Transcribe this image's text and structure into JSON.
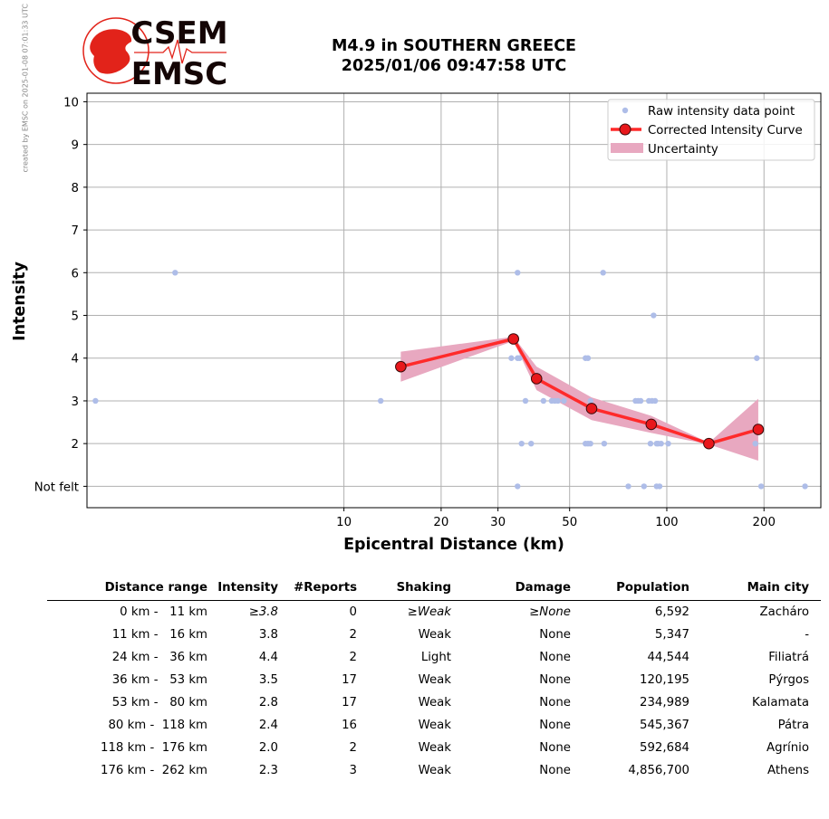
{
  "credit": "created by EMSC on 2025-01-08 07:01:33 UTC",
  "logo": {
    "text_top": "CSEM",
    "text_bottom": "EMSC",
    "brand_color": "#e2231a"
  },
  "chart_data": {
    "type": "scatter",
    "title_line1": "M4.9 in SOUTHERN GREECE",
    "title_line2": "2025/01/06 09:47:58 UTC",
    "xlabel": "Epicentral Distance (km)",
    "ylabel": "Intensity",
    "x_scale": "log",
    "xlim": [
      1.6,
      300
    ],
    "ylim": [
      0.5,
      10.2
    ],
    "x_ticks": [
      10,
      20,
      30,
      50,
      100,
      200
    ],
    "y_ticks": [
      1,
      2,
      3,
      4,
      5,
      6,
      7,
      8,
      9,
      10
    ],
    "y_tick_labels": [
      "Not felt",
      "2",
      "3",
      "4",
      "5",
      "6",
      "7",
      "8",
      "9",
      "10"
    ],
    "grid": true,
    "legend_position": "top-right",
    "colors": {
      "raw": "#aebde8",
      "curve": "#ff2a2a",
      "marker": "#e8181c",
      "uncertainty": "#e8a8c0"
    },
    "series": [
      {
        "name": "Raw intensity data point",
        "points": [
          [
            1.7,
            3
          ],
          [
            3,
            6
          ],
          [
            13,
            3
          ],
          [
            33,
            4
          ],
          [
            34.5,
            6
          ],
          [
            34.5,
            4
          ],
          [
            35,
            4
          ],
          [
            34.5,
            1
          ],
          [
            35.5,
            2
          ],
          [
            36.5,
            3
          ],
          [
            38,
            2
          ],
          [
            41.5,
            3
          ],
          [
            44,
            3
          ],
          [
            45,
            3
          ],
          [
            46,
            3
          ],
          [
            48,
            3
          ],
          [
            56,
            4
          ],
          [
            57,
            4
          ],
          [
            56,
            2
          ],
          [
            57,
            2
          ],
          [
            58,
            2
          ],
          [
            58,
            3
          ],
          [
            63.5,
            6
          ],
          [
            64,
            2
          ],
          [
            76,
            1
          ],
          [
            80,
            3
          ],
          [
            81.5,
            3
          ],
          [
            83,
            3
          ],
          [
            85,
            1
          ],
          [
            88,
            3
          ],
          [
            89,
            2
          ],
          [
            90,
            3
          ],
          [
            91,
            5
          ],
          [
            92,
            3
          ],
          [
            93,
            1
          ],
          [
            93,
            2
          ],
          [
            94,
            2
          ],
          [
            95,
            1
          ],
          [
            96,
            2
          ],
          [
            101,
            2
          ],
          [
            188,
            2
          ],
          [
            190,
            4
          ],
          [
            196,
            1
          ],
          [
            268,
            1
          ]
        ]
      },
      {
        "name": "Corrected Intensity Curve",
        "points": [
          [
            15,
            3.8
          ],
          [
            33.5,
            4.45
          ],
          [
            39.5,
            3.52
          ],
          [
            58.5,
            2.82
          ],
          [
            89.5,
            2.45
          ],
          [
            135,
            2.0
          ],
          [
            192,
            2.33
          ]
        ]
      },
      {
        "name": "Uncertainty",
        "band": [
          [
            15,
            3.45,
            4.15
          ],
          [
            33.5,
            4.4,
            4.5
          ],
          [
            39.5,
            3.25,
            3.8
          ],
          [
            58.5,
            2.55,
            3.08
          ],
          [
            89.5,
            2.25,
            2.65
          ],
          [
            135,
            1.98,
            2.02
          ],
          [
            192,
            1.6,
            3.05
          ]
        ]
      }
    ]
  },
  "table": {
    "headers": [
      "Distance range",
      "Intensity",
      "#Reports",
      "Shaking",
      "Damage",
      "Population",
      "Main city"
    ],
    "rows": [
      [
        "0 km -   11 km",
        "≥3.8",
        "0",
        "≥Weak",
        "≥None",
        "6,592",
        "Zacháro"
      ],
      [
        "11 km -   16 km",
        "3.8",
        "2",
        "Weak",
        "None",
        "5,347",
        "-"
      ],
      [
        "24 km -   36 km",
        "4.4",
        "2",
        "Light",
        "None",
        "44,544",
        "Filiatrá"
      ],
      [
        "36 km -   53 km",
        "3.5",
        "17",
        "Weak",
        "None",
        "120,195",
        "Pýrgos"
      ],
      [
        "53 km -   80 km",
        "2.8",
        "17",
        "Weak",
        "None",
        "234,989",
        "Kalamata"
      ],
      [
        "80 km -  118 km",
        "2.4",
        "16",
        "Weak",
        "None",
        "545,367",
        "Pátra"
      ],
      [
        "118 km -  176 km",
        "2.0",
        "2",
        "Weak",
        "None",
        "592,684",
        "Agrínio"
      ],
      [
        "176 km -  262 km",
        "2.3",
        "3",
        "Weak",
        "None",
        "4,856,700",
        "Athens"
      ]
    ]
  }
}
